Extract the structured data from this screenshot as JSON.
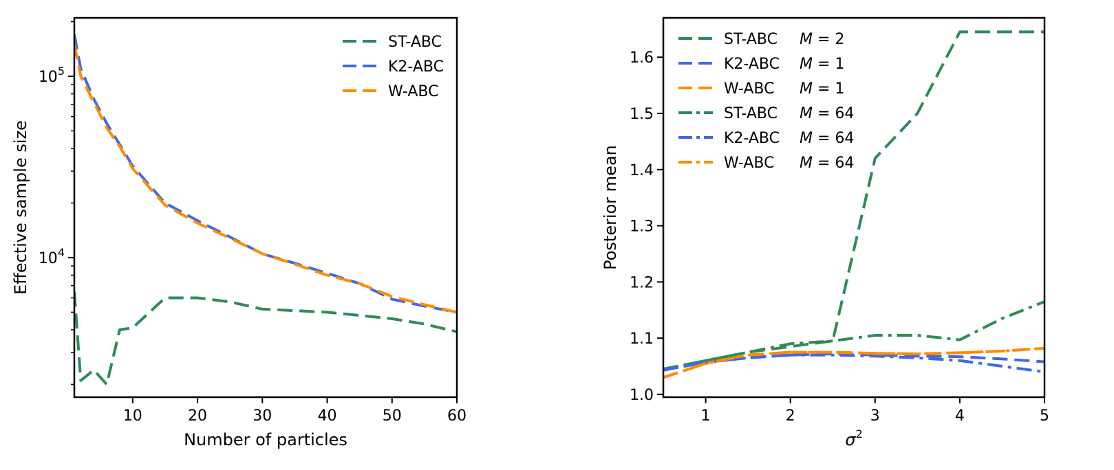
{
  "chart_data": [
    {
      "type": "line",
      "title": "",
      "xlabel": "Number of particles",
      "ylabel": "Effective sample size",
      "xscale": "linear",
      "yscale": "log",
      "xlim": [
        1,
        60
      ],
      "ylim": [
        1700,
        210000
      ],
      "xticks": [
        10,
        20,
        30,
        40,
        50,
        60
      ],
      "yticks": [
        {
          "value": 10000,
          "base": "10",
          "exp": "4"
        },
        {
          "value": 100000,
          "base": "10",
          "exp": "5"
        }
      ],
      "legend_position": "upper right",
      "grid": false,
      "series": [
        {
          "name": "ST-ABC",
          "color": "#2e8b57",
          "dash": "dashed",
          "x": [
            1,
            2,
            4,
            6,
            8,
            10,
            15,
            20,
            25,
            30,
            35,
            40,
            45,
            50,
            55,
            60
          ],
          "y": [
            6500,
            2100,
            2400,
            2000,
            4000,
            4100,
            6000,
            6000,
            5700,
            5200,
            5100,
            5000,
            4800,
            4600,
            4300,
            3900
          ]
        },
        {
          "name": "K2-ABC",
          "color": "#4169e1",
          "dash": "dashed",
          "x": [
            1,
            2,
            4,
            6,
            8,
            10,
            15,
            20,
            25,
            30,
            35,
            40,
            45,
            50,
            55,
            60
          ],
          "y": [
            170000,
            110000,
            75000,
            55000,
            42000,
            32000,
            20000,
            16000,
            13000,
            10500,
            9300,
            8200,
            7200,
            5900,
            5400,
            5000
          ]
        },
        {
          "name": "W-ABC",
          "color": "#ff8c00",
          "dash": "dashed",
          "x": [
            1,
            2,
            4,
            6,
            8,
            10,
            15,
            20,
            25,
            30,
            35,
            40,
            45,
            50,
            55,
            60
          ],
          "y": [
            150000,
            100000,
            72000,
            52000,
            41000,
            31000,
            19500,
            15500,
            12800,
            10500,
            9200,
            8000,
            7200,
            6100,
            5500,
            5000
          ]
        }
      ]
    },
    {
      "type": "line",
      "title": "",
      "xlabel": "σ",
      "xlabel_sup": "2",
      "ylabel": "Posterior mean",
      "xscale": "linear",
      "yscale": "linear",
      "xlim": [
        0.5,
        5
      ],
      "ylim": [
        0.995,
        1.67
      ],
      "xticks": [
        1,
        2,
        3,
        4,
        5
      ],
      "yticks": [
        1.0,
        1.1,
        1.2,
        1.3,
        1.4,
        1.5,
        1.6
      ],
      "ytick_labels": [
        "1.0",
        "1.1",
        "1.2",
        "1.3",
        "1.4",
        "1.5",
        "1.6"
      ],
      "legend_position": "upper left",
      "grid": false,
      "legend_math": "M = ",
      "series": [
        {
          "name": "ST-ABC",
          "m_value": "2",
          "color": "#2e8b57",
          "dash": "dashed",
          "x": [
            0.5,
            1.0,
            1.5,
            2.0,
            2.5,
            3.0,
            3.5,
            4.0,
            4.5,
            5.0
          ],
          "y": [
            1.045,
            1.06,
            1.075,
            1.085,
            1.095,
            1.42,
            1.5,
            1.645,
            1.645,
            1.645
          ]
        },
        {
          "name": "K2-ABC",
          "m_value": "1",
          "color": "#4169e1",
          "dash": "dashed",
          "x": [
            0.5,
            1.0,
            1.5,
            2.0,
            2.5,
            3.0,
            3.5,
            4.0,
            4.5,
            5.0
          ],
          "y": [
            1.043,
            1.057,
            1.065,
            1.07,
            1.072,
            1.07,
            1.068,
            1.067,
            1.063,
            1.058
          ]
        },
        {
          "name": "W-ABC",
          "m_value": "1",
          "color": "#ff8c00",
          "dash": "dashed",
          "x": [
            0.5,
            1.0,
            1.5,
            2.0,
            2.5,
            3.0,
            3.5,
            4.0,
            4.5,
            5.0
          ],
          "y": [
            1.03,
            1.055,
            1.07,
            1.075,
            1.075,
            1.073,
            1.072,
            1.074,
            1.077,
            1.082
          ]
        },
        {
          "name": "ST-ABC",
          "m_value": "64",
          "color": "#2e8b57",
          "dash": "dashdot",
          "x": [
            0.5,
            1.0,
            1.5,
            2.0,
            2.5,
            3.0,
            3.5,
            4.0,
            4.5,
            5.0
          ],
          "y": [
            1.045,
            1.06,
            1.075,
            1.09,
            1.095,
            1.105,
            1.105,
            1.097,
            1.135,
            1.165
          ]
        },
        {
          "name": "K2-ABC",
          "m_value": "64",
          "color": "#4169e1",
          "dash": "dashdot",
          "x": [
            0.5,
            1.0,
            1.5,
            2.0,
            2.5,
            3.0,
            3.5,
            4.0,
            4.5,
            5.0
          ],
          "y": [
            1.043,
            1.057,
            1.065,
            1.07,
            1.07,
            1.068,
            1.065,
            1.06,
            1.05,
            1.04
          ]
        },
        {
          "name": "W-ABC",
          "m_value": "64",
          "color": "#ff8c00",
          "dash": "dashdot",
          "x": [
            0.5,
            1.0,
            1.5,
            2.0,
            2.5,
            3.0,
            3.5,
            4.0,
            4.5,
            5.0
          ],
          "y": [
            1.03,
            1.055,
            1.07,
            1.075,
            1.075,
            1.073,
            1.072,
            1.074,
            1.077,
            1.082
          ]
        }
      ]
    }
  ]
}
